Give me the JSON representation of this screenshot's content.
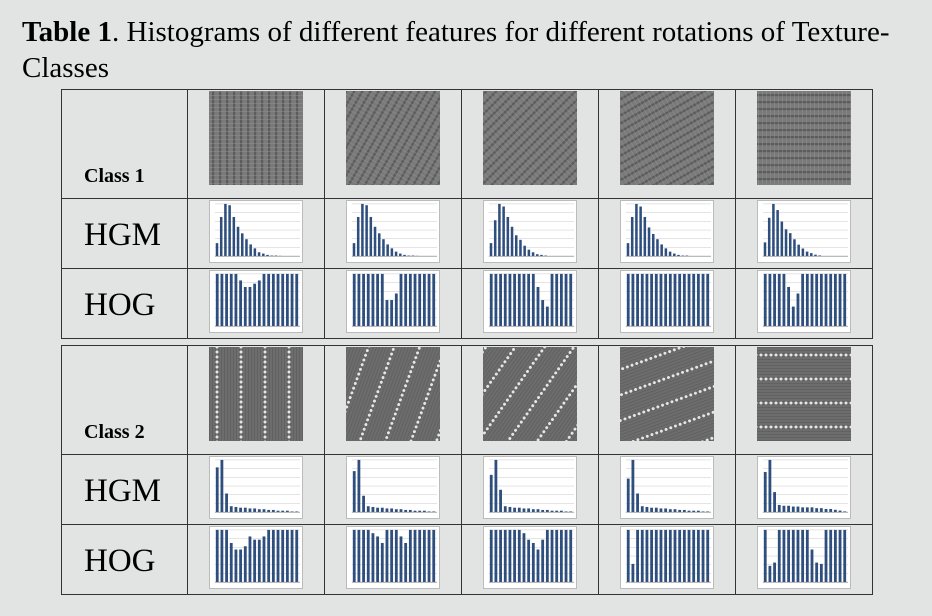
{
  "caption": {
    "prefix": "Table 1",
    "text": ".  Histograms of different features for different rotations of Texture-Classes"
  },
  "colors": {
    "bar": "#2e4e7e",
    "grid": "#c8c8c8",
    "border": "#333333"
  },
  "blocks": [
    {
      "class_label": "Class 1",
      "texture_style": "stripes-dense",
      "rotations_deg": [
        0,
        30,
        45,
        60,
        90
      ],
      "rows": [
        {
          "label": "HGM",
          "histograms": [
            [
              2,
              6,
              8,
              7.8,
              6,
              4.5,
              3.5,
              2.6,
              1.8,
              1.2,
              0.6,
              0.4,
              0.2,
              0.1,
              0.1,
              0.05,
              0,
              0,
              0,
              0
            ],
            [
              2,
              6,
              8,
              7.8,
              6,
              4.5,
              3.5,
              2.6,
              1.8,
              1.2,
              0.7,
              0.4,
              0.2,
              0.1,
              0.1,
              0.05,
              0,
              0,
              0,
              0
            ],
            [
              2,
              5.5,
              8,
              7.6,
              6,
              4.5,
              3.2,
              2.5,
              1.6,
              1,
              0.6,
              0.3,
              0.2,
              0.1,
              0,
              0,
              0,
              0,
              0,
              0
            ],
            [
              2,
              6,
              8,
              7.6,
              6,
              4.4,
              3.4,
              2.6,
              1.8,
              1.2,
              0.7,
              0.4,
              0.2,
              0.1,
              0.1,
              0,
              0,
              0,
              0,
              0
            ],
            [
              1.8,
              5,
              6.8,
              6,
              4.5,
              3.5,
              3,
              2.2,
              1.5,
              1,
              0.6,
              0.4,
              0.2,
              0.1,
              0,
              0,
              0,
              0,
              0,
              0
            ]
          ]
        },
        {
          "label": "HOG",
          "histograms": [
            [
              8,
              8,
              8,
              8,
              8,
              7,
              6,
              6,
              6.5,
              7,
              8,
              8,
              8,
              8,
              8,
              8,
              8,
              8
            ],
            [
              8,
              8,
              8,
              8,
              8,
              8,
              8,
              4,
              4,
              5,
              8,
              8,
              8,
              8,
              8,
              8,
              8,
              8
            ],
            [
              8,
              8,
              8,
              8,
              8,
              8,
              8,
              8,
              8,
              8,
              6,
              4,
              3,
              8,
              8,
              8,
              8,
              8
            ],
            [
              8,
              8,
              8,
              8,
              8,
              8,
              8,
              8,
              8,
              8,
              8,
              8,
              8,
              8,
              8,
              8,
              8,
              8
            ],
            [
              8,
              8,
              8,
              8,
              8,
              6,
              3,
              5,
              8,
              8,
              8,
              8,
              8,
              8,
              8,
              8,
              8,
              8
            ]
          ]
        }
      ]
    },
    {
      "class_label": "Class 2",
      "texture_style": "dotted-lines",
      "rotations_deg": [
        0,
        20,
        35,
        70,
        90
      ],
      "rows": [
        {
          "label": "HGM",
          "histograms": [
            [
              6,
              7,
              2.5,
              0.8,
              0.7,
              0.6,
              0.6,
              0.5,
              0.5,
              0.4,
              0.4,
              0.3,
              0.3,
              0.2,
              0.2,
              0.2,
              0.1,
              0.1
            ],
            [
              5.5,
              7,
              2.2,
              0.8,
              0.7,
              0.6,
              0.6,
              0.5,
              0.5,
              0.4,
              0.4,
              0.3,
              0.3,
              0.2,
              0.2,
              0.2,
              0.1,
              0.1
            ],
            [
              5,
              7,
              3,
              0.8,
              0.7,
              0.6,
              0.6,
              0.5,
              0.5,
              0.4,
              0.4,
              0.3,
              0.3,
              0.2,
              0.2,
              0.2,
              0.1,
              0.1
            ],
            [
              4.5,
              7,
              2.5,
              0.8,
              0.7,
              0.6,
              0.6,
              0.5,
              0.5,
              0.4,
              0.4,
              0.3,
              0.3,
              0.2,
              0.2,
              0.2,
              0.1,
              0.1
            ],
            [
              5,
              6.5,
              2.5,
              0.9,
              0.8,
              0.8,
              0.7,
              0.7,
              0.6,
              0.6,
              0.6,
              0.5,
              0.5,
              0.4,
              0.4,
              0.3,
              0.2,
              0.1
            ]
          ]
        },
        {
          "label": "HOG",
          "histograms": [
            [
              8,
              8,
              8,
              6,
              5,
              5,
              5.5,
              7,
              6.5,
              6.5,
              7,
              8,
              8,
              8,
              8,
              8,
              8,
              8
            ],
            [
              8,
              8,
              8,
              8,
              7.5,
              7,
              6,
              8,
              8,
              8,
              7,
              6,
              8,
              8,
              8,
              8,
              8,
              8
            ],
            [
              8,
              8,
              8,
              8,
              8,
              8,
              8,
              7.5,
              6.5,
              6,
              5,
              6.5,
              8,
              8,
              8,
              8,
              8,
              8
            ],
            [
              8,
              2.8,
              8,
              8,
              8,
              8,
              8,
              8,
              8,
              8,
              8,
              8,
              8,
              8,
              8,
              8,
              8,
              8
            ],
            [
              8,
              2.5,
              3,
              8,
              8,
              8,
              8,
              8,
              8,
              8,
              5,
              3,
              2.8,
              8,
              8,
              8,
              8,
              8
            ]
          ]
        }
      ]
    }
  ]
}
